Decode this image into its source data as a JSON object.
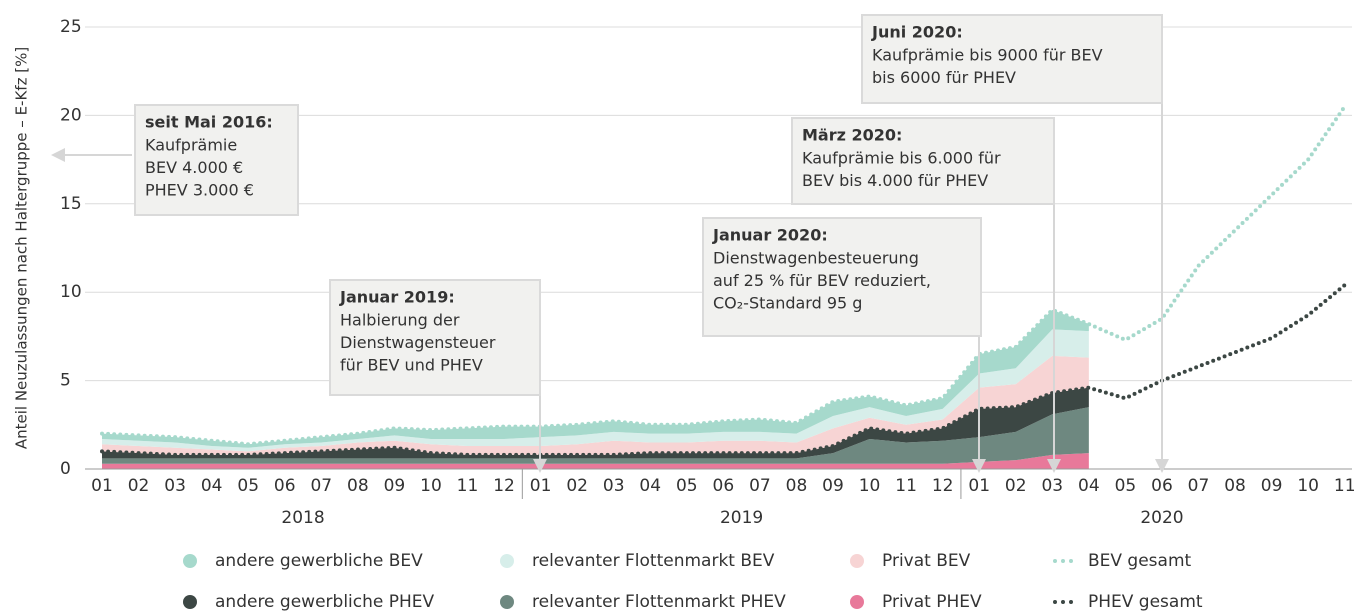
{
  "chart_data": {
    "type": "stacked_area",
    "y_label": "Anteil Neuzulassungen nach Haltergruppe – E-Kfz [%]",
    "categories": [
      "01",
      "02",
      "03",
      "04",
      "05",
      "06",
      "07",
      "08",
      "09",
      "10",
      "11",
      "12",
      "01",
      "02",
      "03",
      "04",
      "05",
      "06",
      "07",
      "08",
      "09",
      "10",
      "11",
      "12",
      "01",
      "02",
      "03",
      "04",
      "05",
      "06",
      "07",
      "08",
      "09",
      "10",
      "11"
    ],
    "year_groups": [
      {
        "label": "2018",
        "count": 12
      },
      {
        "label": "2019",
        "count": 12
      },
      {
        "label": "2020",
        "count": 11
      }
    ],
    "ylim": [
      0,
      25
    ],
    "yticks": [
      0,
      5,
      10,
      15,
      20,
      25
    ],
    "grid": true,
    "series": [
      {
        "name": "andere gewerbliche BEV",
        "kind": "area",
        "color": "#a6d9cc",
        "values": [
          0.3,
          0.3,
          0.3,
          0.3,
          0.2,
          0.2,
          0.3,
          0.3,
          0.4,
          0.5,
          0.6,
          0.7,
          0.6,
          0.6,
          0.6,
          0.5,
          0.5,
          0.6,
          0.7,
          0.6,
          0.8,
          0.6,
          0.6,
          0.6,
          1.1,
          1.2,
          1.1,
          0.4,
          null,
          null,
          null,
          null,
          null,
          null,
          null
        ]
      },
      {
        "name": "relevanter Flottenmarkt BEV",
        "kind": "area",
        "color": "#d7eeea",
        "values": [
          0.3,
          0.3,
          0.3,
          0.2,
          0.2,
          0.2,
          0.2,
          0.2,
          0.3,
          0.3,
          0.4,
          0.4,
          0.5,
          0.5,
          0.5,
          0.5,
          0.5,
          0.5,
          0.5,
          0.5,
          0.7,
          0.6,
          0.5,
          0.6,
          0.8,
          0.9,
          1.5,
          1.5,
          null,
          null,
          null,
          null,
          null,
          null,
          null
        ]
      },
      {
        "name": "Privat BEV",
        "kind": "area",
        "color": "#f7d4d4",
        "values": [
          0.4,
          0.4,
          0.4,
          0.3,
          0.2,
          0.3,
          0.3,
          0.4,
          0.4,
          0.5,
          0.5,
          0.5,
          0.5,
          0.6,
          0.8,
          0.6,
          0.6,
          0.7,
          0.7,
          0.6,
          1.0,
          0.6,
          0.5,
          0.5,
          1.2,
          1.3,
          2.1,
          1.7,
          null,
          null,
          null,
          null,
          null,
          null,
          null
        ]
      },
      {
        "name": "BEV gesamt",
        "kind": "line",
        "color": "#a6d9cc",
        "values": [
          2.0,
          1.9,
          1.8,
          1.6,
          1.4,
          1.6,
          1.8,
          2.0,
          2.3,
          2.2,
          2.3,
          2.4,
          2.4,
          2.5,
          2.7,
          2.5,
          2.5,
          2.7,
          2.8,
          2.6,
          3.8,
          4.1,
          3.6,
          4.0,
          6.5,
          6.9,
          9.0,
          8.2,
          7.3,
          8.5,
          11.5,
          13.5,
          15.5,
          17.5,
          20.5
        ]
      },
      {
        "name": "andere gewerbliche PHEV",
        "kind": "area",
        "color": "#3c4744",
        "values": [
          0.4,
          0.3,
          0.2,
          0.2,
          0.2,
          0.3,
          0.4,
          0.5,
          0.6,
          0.3,
          0.2,
          0.2,
          0.2,
          0.2,
          0.2,
          0.3,
          0.3,
          0.3,
          0.3,
          0.3,
          0.4,
          0.6,
          0.5,
          0.7,
          1.6,
          1.4,
          1.2,
          1.1,
          null,
          null,
          null,
          null,
          null,
          null,
          null
        ]
      },
      {
        "name": "relevanter Flottenmarkt PHEV",
        "kind": "area",
        "color": "#6e8880",
        "values": [
          0.3,
          0.3,
          0.3,
          0.3,
          0.3,
          0.3,
          0.3,
          0.3,
          0.3,
          0.3,
          0.3,
          0.3,
          0.3,
          0.3,
          0.3,
          0.3,
          0.3,
          0.3,
          0.3,
          0.3,
          0.6,
          1.4,
          1.2,
          1.3,
          1.4,
          1.6,
          2.3,
          2.6,
          null,
          null,
          null,
          null,
          null,
          null,
          null
        ]
      },
      {
        "name": "Privat PHEV",
        "kind": "area",
        "color": "#e8799a",
        "values": [
          0.3,
          0.3,
          0.3,
          0.3,
          0.3,
          0.3,
          0.3,
          0.3,
          0.3,
          0.3,
          0.3,
          0.3,
          0.3,
          0.3,
          0.3,
          0.3,
          0.3,
          0.3,
          0.3,
          0.3,
          0.3,
          0.3,
          0.3,
          0.3,
          0.4,
          0.5,
          0.8,
          0.9,
          null,
          null,
          null,
          null,
          null,
          null,
          null
        ]
      },
      {
        "name": "PHEV gesamt",
        "kind": "line",
        "color": "#3c4744",
        "values": [
          1.0,
          0.9,
          0.8,
          0.8,
          0.8,
          0.9,
          1.0,
          1.1,
          1.2,
          0.9,
          0.8,
          0.8,
          0.8,
          0.8,
          0.8,
          0.9,
          0.9,
          0.9,
          0.9,
          0.9,
          1.3,
          2.3,
          2.0,
          2.3,
          3.4,
          3.5,
          4.3,
          4.6,
          4.0,
          5.0,
          5.8,
          6.6,
          7.4,
          8.7,
          10.4
        ]
      }
    ],
    "annotations": [
      {
        "title": "seit Mai 2016:",
        "lines": [
          "Kaufprämie",
          "BEV 4.000 €",
          "PHEV 3.000 €"
        ]
      },
      {
        "title": "Januar 2019:",
        "lines": [
          "Halbierung der",
          "Dienstwagensteuer",
          "für BEV und PHEV"
        ]
      },
      {
        "title": "Januar 2020:",
        "lines": [
          "Dienstwagenbesteuerung",
          "auf 25 % für BEV reduziert,",
          "CO₂-Standard 95 g"
        ]
      },
      {
        "title": "März 2020:",
        "lines": [
          "Kaufprämie bis 6.000 für",
          "BEV bis 4.000 für PHEV"
        ]
      },
      {
        "title": "Juni 2020:",
        "lines": [
          "Kaufprämie bis 9000 für BEV",
          "bis 6000 für PHEV"
        ]
      }
    ]
  }
}
